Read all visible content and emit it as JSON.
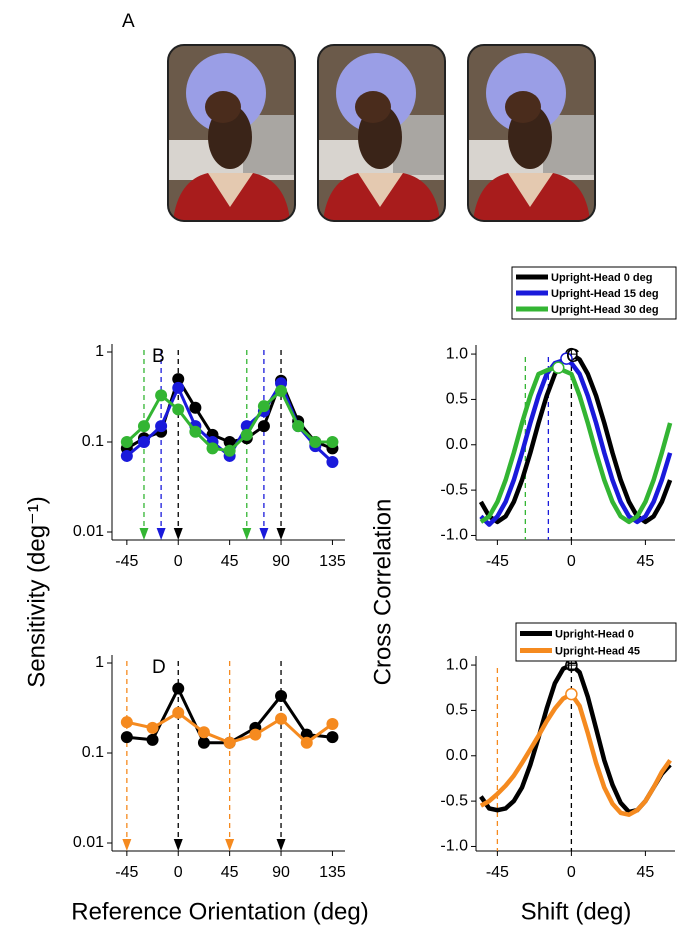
{
  "figure": {
    "panel_label": "A",
    "sensitivity_label": "Sensitivity (deg⁻¹)",
    "orientation_label": "Reference Orientation (deg)",
    "correlation_label": "Cross Correlation",
    "shift_label": "Shift (deg)"
  },
  "chart_data": [
    {
      "type": "line",
      "panel_label": "B",
      "log_y": true,
      "marker": "circle",
      "x": [
        -45,
        -30,
        -15,
        0,
        15,
        30,
        45,
        60,
        75,
        90,
        105,
        120,
        135
      ],
      "series": [
        {
          "color": "#000000",
          "values": [
            0.085,
            0.11,
            0.13,
            0.5,
            0.24,
            0.12,
            0.1,
            0.11,
            0.15,
            0.48,
            0.17,
            0.1,
            0.085
          ]
        },
        {
          "color": "#1a1adb",
          "values": [
            0.07,
            0.1,
            0.15,
            0.4,
            0.15,
            0.1,
            0.07,
            0.15,
            0.22,
            0.45,
            0.15,
            0.09,
            0.06
          ]
        },
        {
          "color": "#33b533",
          "values": [
            0.1,
            0.15,
            0.33,
            0.23,
            0.13,
            0.085,
            0.08,
            0.12,
            0.25,
            0.37,
            0.15,
            0.1,
            0.1
          ]
        }
      ],
      "xlim": [
        -58,
        146
      ],
      "ylim": [
        0.01,
        1
      ],
      "xticks": [
        -45,
        0,
        45,
        90,
        135
      ],
      "yticks": [
        0.01,
        0.1,
        1
      ],
      "reference_lines": [
        {
          "x": -30,
          "color": "#33b533"
        },
        {
          "x": -15,
          "color": "#1a1adb"
        },
        {
          "x": 0,
          "color": "#000000"
        },
        {
          "x": 60,
          "color": "#33b533"
        },
        {
          "x": 75,
          "color": "#1a1adb"
        },
        {
          "x": 90,
          "color": "#000000"
        }
      ]
    },
    {
      "type": "line",
      "panel_label": "C",
      "x": [
        -55,
        -50,
        -45,
        -40,
        -35,
        -30,
        -25,
        -20,
        -15,
        -10,
        -5,
        0,
        5,
        10,
        15,
        20,
        25,
        30,
        35,
        40,
        45,
        50,
        55,
        60
      ],
      "series": [
        {
          "name": "Upright-Head 0 deg",
          "color": "#000000",
          "values": [
            -0.63,
            -0.79,
            -0.85,
            -0.79,
            -0.63,
            -0.39,
            -0.09,
            0.24,
            0.54,
            0.78,
            0.94,
            1.0,
            0.94,
            0.78,
            0.54,
            0.24,
            -0.09,
            -0.39,
            -0.63,
            -0.79,
            -0.85,
            -0.79,
            -0.63,
            -0.39
          ],
          "peak": {
            "x": 0,
            "y": 1.0,
            "crosshair": true
          }
        },
        {
          "name": "Upright-Head 15 deg",
          "color": "#1a1adb",
          "values": [
            -0.79,
            -0.88,
            -0.79,
            -0.63,
            -0.39,
            -0.09,
            0.24,
            0.54,
            0.78,
            0.9,
            0.93,
            0.9,
            0.78,
            0.54,
            0.24,
            -0.09,
            -0.39,
            -0.63,
            -0.79,
            -0.85,
            -0.79,
            -0.63,
            -0.39,
            -0.09
          ],
          "peak": {
            "x": -3,
            "y": 0.95,
            "crosshair": false
          }
        },
        {
          "name": "Upright-Head 30 deg",
          "color": "#33b533",
          "values": [
            -0.85,
            -0.79,
            -0.63,
            -0.39,
            -0.09,
            0.24,
            0.54,
            0.78,
            0.82,
            0.85,
            0.82,
            0.78,
            0.54,
            0.24,
            -0.09,
            -0.39,
            -0.63,
            -0.79,
            -0.85,
            -0.79,
            -0.63,
            -0.39,
            -0.09,
            0.24
          ],
          "peak": {
            "x": -8,
            "y": 0.85,
            "crosshair": false
          }
        }
      ],
      "xlim": [
        -58,
        63
      ],
      "ylim": [
        -1.05,
        1.1
      ],
      "xticks": [
        -45,
        0,
        45
      ],
      "yticks": [
        {
          "value": -1,
          "label": "-1.0"
        },
        {
          "value": -0.5,
          "label": "-0.5"
        },
        {
          "value": 0,
          "label": "0.0"
        },
        {
          "value": 0.5,
          "label": "0.5"
        },
        {
          "value": 1,
          "label": "1.0"
        }
      ],
      "reference_lines": [
        {
          "x": -28,
          "color": "#33b533"
        },
        {
          "x": -14,
          "color": "#1a1adb"
        },
        {
          "x": 0,
          "color": "#000000"
        }
      ],
      "legend": "above"
    },
    {
      "type": "line",
      "panel_label": "D",
      "log_y": true,
      "marker": "circle",
      "x": [
        -45,
        -22.5,
        0,
        22.5,
        45,
        67.5,
        90,
        112.5,
        135
      ],
      "series": [
        {
          "color": "#000000",
          "values": [
            0.15,
            0.14,
            0.52,
            0.13,
            0.13,
            0.19,
            0.43,
            0.16,
            0.15
          ]
        },
        {
          "color": "#f58a1f",
          "values": [
            0.22,
            0.19,
            0.28,
            0.17,
            0.13,
            0.16,
            0.24,
            0.13,
            0.21
          ]
        }
      ],
      "xlim": [
        -58,
        146
      ],
      "ylim": [
        0.01,
        1
      ],
      "xticks": [
        -45,
        0,
        45,
        90,
        135
      ],
      "yticks": [
        0.01,
        0.1,
        1
      ],
      "reference_lines": [
        {
          "x": -45,
          "color": "#f58a1f"
        },
        {
          "x": 0,
          "color": "#000000"
        },
        {
          "x": 45,
          "color": "#f58a1f"
        },
        {
          "x": 90,
          "color": "#000000"
        }
      ]
    },
    {
      "type": "line",
      "panel_label": "E",
      "x": [
        -55,
        -50,
        -45,
        -40,
        -35,
        -30,
        -25,
        -20,
        -15,
        -10,
        -5,
        0,
        5,
        10,
        15,
        20,
        25,
        30,
        35,
        40,
        45,
        50,
        55,
        60
      ],
      "series": [
        {
          "name": "Upright-Head 0",
          "color": "#000000",
          "values": [
            -0.45,
            -0.58,
            -0.6,
            -0.58,
            -0.5,
            -0.35,
            -0.1,
            0.2,
            0.52,
            0.8,
            0.96,
            1.0,
            0.92,
            0.65,
            0.3,
            -0.05,
            -0.32,
            -0.52,
            -0.62,
            -0.6,
            -0.5,
            -0.35,
            -0.2,
            -0.1
          ],
          "peak": {
            "x": 0,
            "y": 1.0,
            "crosshair": true
          }
        },
        {
          "name": "Upright-Head 45",
          "color": "#f58a1f",
          "values": [
            -0.55,
            -0.5,
            -0.42,
            -0.33,
            -0.22,
            -0.08,
            0.07,
            0.22,
            0.38,
            0.52,
            0.63,
            0.68,
            0.55,
            0.25,
            -0.08,
            -0.35,
            -0.53,
            -0.63,
            -0.65,
            -0.6,
            -0.5,
            -0.35,
            -0.18,
            -0.05
          ],
          "peak": {
            "x": 0,
            "y": 0.68,
            "crosshair": false
          }
        }
      ],
      "xlim": [
        -58,
        63
      ],
      "ylim": [
        -1.05,
        1.1
      ],
      "xticks": [
        -45,
        0,
        45
      ],
      "yticks": [
        {
          "value": -1,
          "label": "-1.0"
        },
        {
          "value": -0.5,
          "label": "-0.5"
        },
        {
          "value": 0,
          "label": "0.0"
        },
        {
          "value": 0.5,
          "label": "0.5"
        },
        {
          "value": 1,
          "label": "1.0"
        }
      ],
      "reference_lines": [
        {
          "x": -45,
          "color": "#f58a1f"
        },
        {
          "x": 0,
          "color": "#000000"
        }
      ],
      "legend": "above"
    }
  ]
}
